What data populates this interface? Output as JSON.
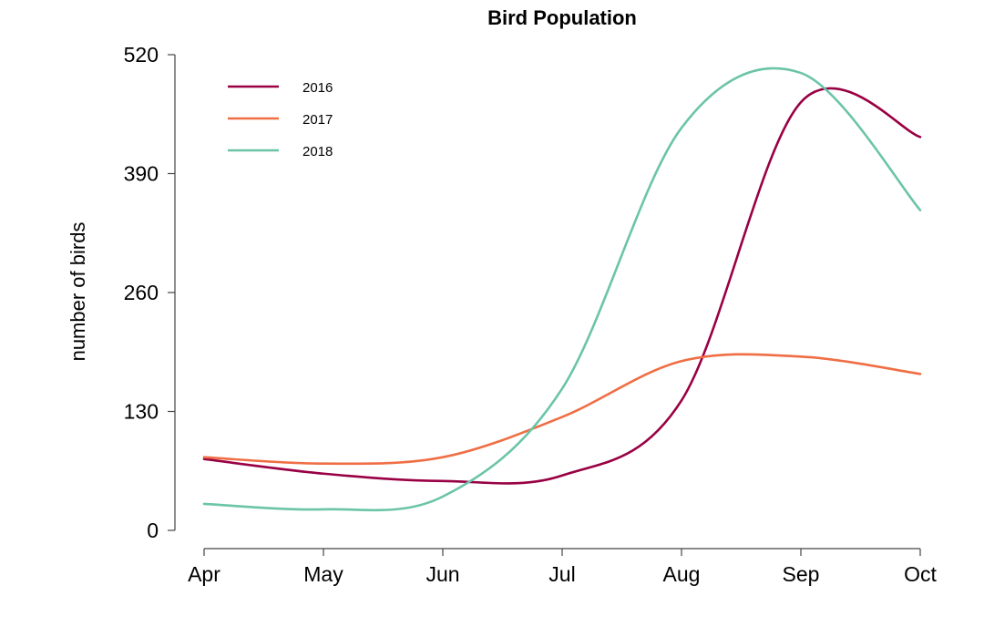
{
  "chart_data": {
    "type": "line",
    "title": "Bird Population",
    "xlabel": "",
    "ylabel": "number of birds",
    "categories": [
      "Apr",
      "May",
      "Jun",
      "Jul",
      "Aug",
      "Sep",
      "Oct"
    ],
    "ylim": [
      0,
      520
    ],
    "yticks": [
      0,
      130,
      260,
      390,
      520
    ],
    "grid": false,
    "legend_position": "top-left",
    "series": [
      {
        "name": "2016",
        "color": "#990044",
        "values": [
          78,
          62,
          54,
          60,
          142,
          468,
          430
        ]
      },
      {
        "name": "2017",
        "color": "#ef6e44",
        "values": [
          80,
          73,
          80,
          124,
          185,
          190,
          171
        ]
      },
      {
        "name": "2018",
        "color": "#6bc4a8",
        "values": [
          29,
          23,
          37,
          155,
          440,
          500,
          350
        ]
      }
    ]
  }
}
